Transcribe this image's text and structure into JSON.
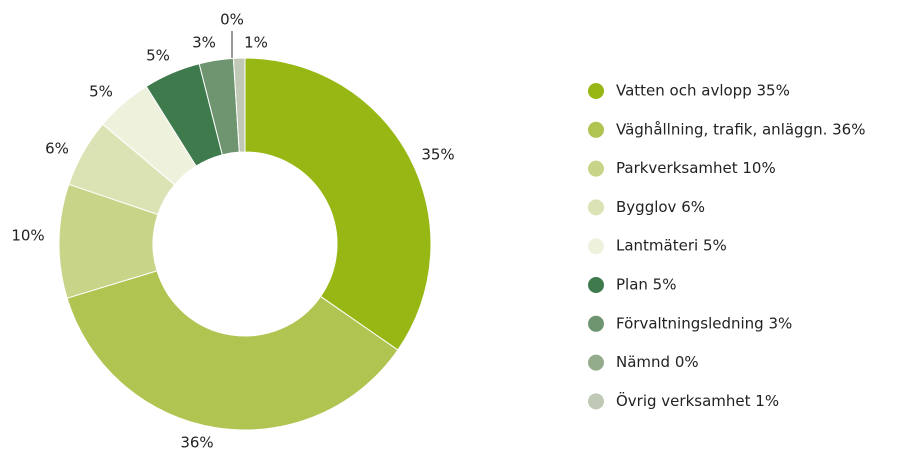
{
  "chart_data": {
    "type": "donut",
    "categories": [
      "Vatten och avlopp 35%",
      "Väghållning, trafik, anläggn. 36%",
      "Parkverksamhet 10%",
      "Bygglov 6%",
      "Lantmäteri 5%",
      "Plan 5%",
      "Förvaltningsledning 3%",
      "Nämnd 0%",
      "Övrig verksamhet 1%"
    ],
    "values": [
      35,
      36,
      10,
      6,
      5,
      5,
      3,
      0,
      1
    ],
    "value_labels": [
      "35%",
      "36%",
      "10%",
      "6%",
      "5%",
      "5%",
      "3%",
      "0%",
      "1%"
    ],
    "colors": [
      "#97b714",
      "#b0c452",
      "#c8d487",
      "#dbe3b5",
      "#eef1dc",
      "#3f7a4d",
      "#6e9470",
      "#93ad8b",
      "#bfc9b5"
    ],
    "legend": "right"
  }
}
